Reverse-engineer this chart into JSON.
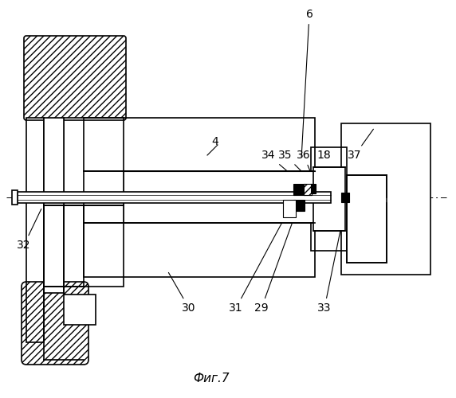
{
  "bg_color": "#ffffff",
  "line_color": "#000000",
  "caption": "Фиг.7",
  "label_fs": 10,
  "lw": 1.2
}
